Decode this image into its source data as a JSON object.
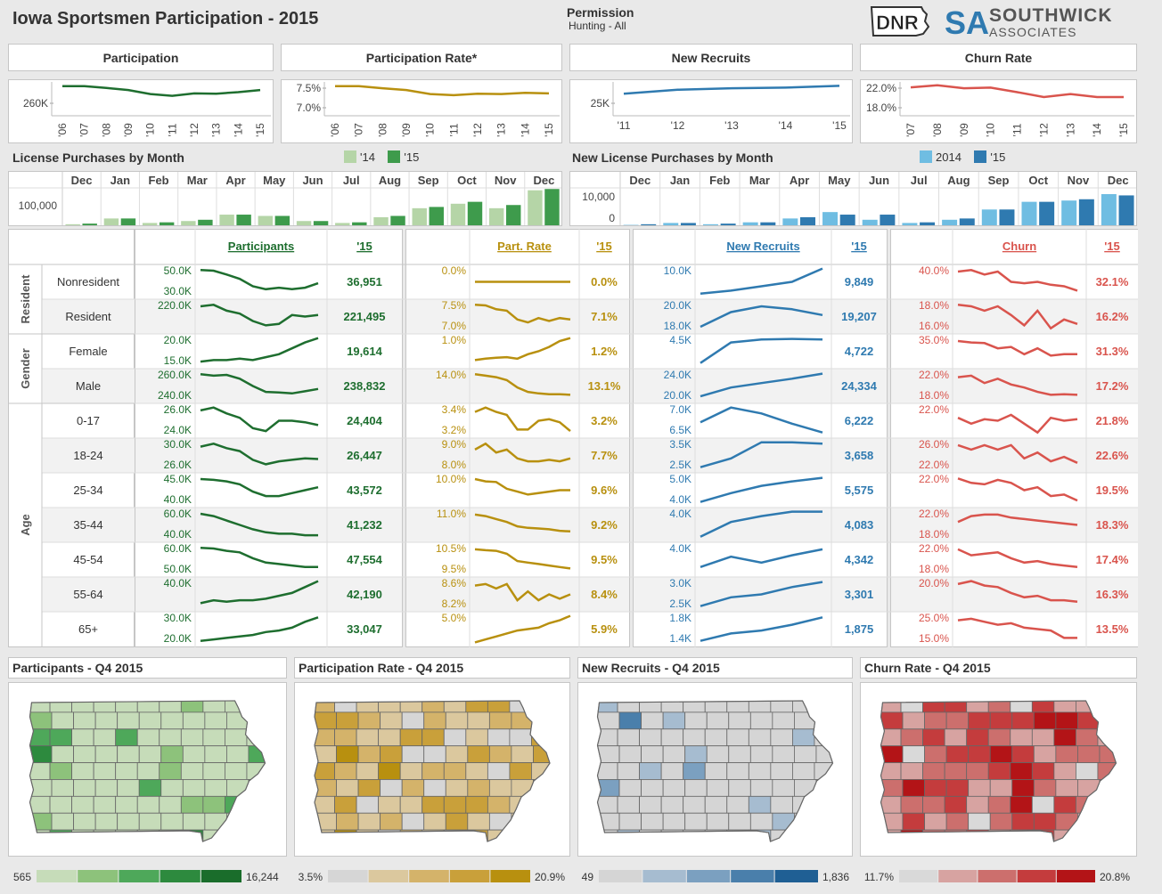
{
  "header": {
    "title": "Iowa Sportsmen Participation - 2015",
    "permission_label": "Permission",
    "permission_value": "Hunting - All",
    "logo_dnr": "DNR",
    "logo_sa_main": "SOUTHWICK",
    "logo_sa_sub": "ASSOCIATES",
    "logo_sa_mark": "SA"
  },
  "kpis": [
    {
      "title": "Participation",
      "color": "#1e6e2f",
      "ticks": [
        "260K"
      ],
      "x": [
        "'06",
        "'07",
        "'08",
        "'09",
        "'10",
        "'11",
        "'12",
        "'13",
        "'14",
        "'15"
      ],
      "values": [
        92,
        92,
        86,
        79,
        66,
        60,
        68,
        67,
        72,
        79
      ]
    },
    {
      "title": "Participation Rate*",
      "color": "#b8900f",
      "ticks": [
        "7.5%",
        "7.0%"
      ],
      "x": [
        "'06",
        "'07",
        "'08",
        "'09",
        "'10",
        "'11",
        "'12",
        "'13",
        "'14",
        "'15"
      ],
      "values": [
        92,
        92,
        85,
        79,
        66,
        62,
        67,
        66,
        70,
        68
      ]
    },
    {
      "title": "New Recruits",
      "color": "#2f7ab0",
      "ticks": [
        "25K"
      ],
      "x": [
        "'11",
        "'12",
        "'13",
        "'14",
        "'15"
      ],
      "values": [
        67,
        80,
        85,
        87,
        93
      ]
    },
    {
      "title": "Churn Rate",
      "color": "#d9544d",
      "ticks": [
        "22.0%",
        "18.0%"
      ],
      "x": [
        "'07",
        "'08",
        "'09",
        "'10",
        "'11",
        "'12",
        "'13",
        "'14",
        "'15"
      ],
      "values": [
        88,
        95,
        85,
        87,
        72,
        56,
        66,
        56,
        56
      ]
    }
  ],
  "license_by_month": {
    "title": "License Purchases by Month",
    "legend": [
      "'14",
      "'15"
    ],
    "colors": [
      "#b5d5a7",
      "#3e9b4c"
    ],
    "months": [
      "Dec",
      "Jan",
      "Feb",
      "Mar",
      "Apr",
      "May",
      "Jun",
      "Jul",
      "Aug",
      "Sep",
      "Oct",
      "Nov",
      "Dec"
    ],
    "ytick": "100,000",
    "v14": [
      3,
      12,
      5,
      8,
      18,
      16,
      8,
      5,
      14,
      28,
      35,
      28,
      56
    ],
    "v15": [
      4,
      12,
      6,
      10,
      18,
      16,
      8,
      6,
      16,
      30,
      38,
      33,
      58
    ]
  },
  "new_license_by_month": {
    "title": "New License Purchases by Month",
    "legend": [
      "2014",
      "'15"
    ],
    "colors": [
      "#6fbde2",
      "#2f7ab0"
    ],
    "months": [
      "Dec",
      "Jan",
      "Feb",
      "Mar",
      "Apr",
      "May",
      "Jun",
      "Jul",
      "Aug",
      "Sep",
      "Oct",
      "Nov",
      "Dec"
    ],
    "yticks": [
      "10,000",
      "0"
    ],
    "v14": [
      2,
      5,
      3,
      6,
      12,
      22,
      10,
      5,
      10,
      26,
      38,
      40,
      50
    ],
    "v15": [
      3,
      5,
      4,
      6,
      14,
      18,
      18,
      6,
      12,
      26,
      38,
      42,
      48
    ]
  },
  "table": {
    "groups": [
      {
        "label": "Resident",
        "rows": 2
      },
      {
        "label": "Gender",
        "rows": 2
      },
      {
        "label": "Age",
        "rows": 7
      }
    ],
    "rows": [
      "Nonresident",
      "Resident",
      "Female",
      "Male",
      "0-17",
      "18-24",
      "25-34",
      "35-44",
      "45-54",
      "55-64",
      "65+"
    ],
    "sections": [
      {
        "header": "Participants",
        "year": "'15",
        "color": "#1e6e2f",
        "ticks": [
          [
            "50.0K",
            "30.0K"
          ],
          [
            "220.0K",
            ""
          ],
          [
            "20.0K",
            "15.0K"
          ],
          [
            "260.0K",
            "240.0K"
          ],
          [
            "26.0K",
            "24.0K"
          ],
          [
            "30.0K",
            "26.0K"
          ],
          [
            "45.0K",
            "40.0K"
          ],
          [
            "60.0K",
            "40.0K"
          ],
          [
            "60.0K",
            "50.0K"
          ],
          [
            "40.0K",
            ""
          ],
          [
            "30.0K",
            "20.0K"
          ]
        ],
        "values": [
          "36,951",
          "221,495",
          "19,614",
          "238,832",
          "24,404",
          "26,447",
          "43,572",
          "41,232",
          "47,554",
          "42,190",
          "33,047"
        ],
        "lines": [
          [
            90,
            88,
            75,
            60,
            35,
            25,
            30,
            25,
            30,
            45
          ],
          [
            85,
            90,
            70,
            60,
            35,
            20,
            25,
            55,
            50,
            55
          ],
          [
            15,
            20,
            20,
            25,
            20,
            30,
            40,
            60,
            80,
            95
          ],
          [
            90,
            85,
            88,
            75,
            50,
            30,
            28,
            25,
            32,
            40
          ],
          [
            85,
            95,
            75,
            60,
            25,
            15,
            50,
            50,
            45,
            35
          ],
          [
            80,
            90,
            75,
            65,
            35,
            20,
            30,
            35,
            40,
            38
          ],
          [
            88,
            85,
            80,
            70,
            45,
            30,
            30,
            40,
            50,
            60
          ],
          [
            88,
            80,
            65,
            50,
            35,
            25,
            20,
            20,
            15,
            15
          ],
          [
            90,
            88,
            80,
            75,
            55,
            40,
            35,
            30,
            25,
            25
          ],
          [
            20,
            30,
            25,
            30,
            30,
            35,
            45,
            55,
            75,
            95
          ],
          [
            10,
            15,
            20,
            25,
            30,
            40,
            45,
            55,
            75,
            90
          ]
        ]
      },
      {
        "header": "Part. Rate",
        "year": "'15",
        "color": "#b8900f",
        "ticks": [
          [
            "0.0%",
            ""
          ],
          [
            "7.5%",
            "7.0%"
          ],
          [
            "1.0%",
            ""
          ],
          [
            "14.0%",
            ""
          ],
          [
            "3.4%",
            "3.2%"
          ],
          [
            "9.0%",
            "8.0%"
          ],
          [
            "10.0%",
            ""
          ],
          [
            "11.0%",
            ""
          ],
          [
            "10.5%",
            "9.5%"
          ],
          [
            "8.6%",
            "8.2%"
          ],
          [
            "5.0%",
            ""
          ]
        ],
        "values": [
          "0.0%",
          "7.1%",
          "1.2%",
          "13.1%",
          "3.2%",
          "7.7%",
          "9.6%",
          "9.2%",
          "9.5%",
          "8.4%",
          "5.9%"
        ],
        "lines": [
          [
            50,
            50,
            50,
            50,
            50,
            50,
            50,
            50,
            50,
            50
          ],
          [
            90,
            88,
            75,
            70,
            40,
            30,
            45,
            35,
            45,
            40
          ],
          [
            20,
            25,
            28,
            30,
            25,
            40,
            50,
            65,
            85,
            95
          ],
          [
            90,
            85,
            80,
            70,
            45,
            30,
            25,
            22,
            22,
            20
          ],
          [
            80,
            95,
            80,
            70,
            20,
            20,
            50,
            55,
            45,
            15
          ],
          [
            70,
            90,
            60,
            70,
            40,
            30,
            30,
            35,
            30,
            40
          ],
          [
            88,
            80,
            78,
            55,
            45,
            35,
            40,
            45,
            50,
            50
          ],
          [
            85,
            80,
            70,
            60,
            45,
            40,
            38,
            35,
            30,
            28
          ],
          [
            85,
            82,
            80,
            70,
            45,
            40,
            35,
            30,
            25,
            20
          ],
          [
            80,
            85,
            70,
            85,
            30,
            60,
            30,
            50,
            35,
            50
          ],
          [
            5,
            15,
            25,
            35,
            45,
            50,
            55,
            70,
            80,
            95
          ]
        ]
      },
      {
        "header": "New Recruits",
        "year": "'15",
        "color": "#2f7ab0",
        "ticks": [
          [
            "10.0K",
            ""
          ],
          [
            "20.0K",
            "18.0K"
          ],
          [
            "4.5K",
            ""
          ],
          [
            "24.0K",
            "20.0K"
          ],
          [
            "7.0K",
            "6.5K"
          ],
          [
            "3.5K",
            "2.5K"
          ],
          [
            "5.0K",
            "4.0K"
          ],
          [
            "4.0K",
            ""
          ],
          [
            "4.0K",
            ""
          ],
          [
            "3.0K",
            "2.5K"
          ],
          [
            "1.8K",
            "1.4K"
          ]
        ],
        "values": [
          "9,849",
          "19,207",
          "4,722",
          "24,334",
          "6,222",
          "3,658",
          "5,575",
          "4,083",
          "4,342",
          "3,301",
          "1,875"
        ],
        "lines": [
          [
            10,
            20,
            35,
            50,
            95
          ],
          [
            15,
            65,
            85,
            75,
            55
          ],
          [
            10,
            80,
            90,
            92,
            90
          ],
          [
            15,
            45,
            60,
            75,
            92
          ],
          [
            45,
            95,
            75,
            40,
            10
          ],
          [
            10,
            40,
            95,
            95,
            90
          ],
          [
            10,
            40,
            65,
            80,
            92
          ],
          [
            10,
            60,
            80,
            95,
            95
          ],
          [
            25,
            60,
            40,
            65,
            85
          ],
          [
            10,
            40,
            50,
            75,
            92
          ],
          [
            10,
            35,
            45,
            65,
            90
          ]
        ]
      },
      {
        "header": "Churn",
        "year": "'15",
        "color": "#d9544d",
        "ticks": [
          [
            "40.0%",
            ""
          ],
          [
            "18.0%",
            "16.0%"
          ],
          [
            "35.0%",
            ""
          ],
          [
            "22.0%",
            "18.0%"
          ],
          [
            "22.0%",
            ""
          ],
          [
            "26.0%",
            "22.0%"
          ],
          [
            "22.0%",
            ""
          ],
          [
            "22.0%",
            "18.0%"
          ],
          [
            "22.0%",
            "18.0%"
          ],
          [
            "20.0%",
            ""
          ],
          [
            "25.0%",
            "15.0%"
          ]
        ],
        "values": [
          "32.1%",
          "16.2%",
          "31.3%",
          "17.2%",
          "21.8%",
          "22.6%",
          "19.5%",
          "18.3%",
          "17.4%",
          "16.3%",
          "13.5%"
        ],
        "lines": [
          [
            85,
            90,
            75,
            85,
            50,
            45,
            50,
            40,
            35,
            20
          ],
          [
            90,
            85,
            70,
            85,
            55,
            20,
            70,
            10,
            40,
            25
          ],
          [
            85,
            80,
            78,
            60,
            65,
            40,
            60,
            35,
            40,
            40
          ],
          [
            80,
            85,
            60,
            75,
            55,
            45,
            30,
            20,
            22,
            20
          ],
          [
            60,
            40,
            55,
            50,
            70,
            40,
            10,
            60,
            50,
            55
          ],
          [
            85,
            70,
            85,
            70,
            85,
            40,
            60,
            30,
            45,
            25
          ],
          [
            90,
            75,
            70,
            85,
            75,
            50,
            60,
            30,
            35,
            15
          ],
          [
            60,
            80,
            85,
            85,
            75,
            70,
            65,
            60,
            55,
            50
          ],
          [
            85,
            65,
            70,
            75,
            55,
            40,
            45,
            35,
            30,
            25
          ],
          [
            85,
            95,
            80,
            75,
            55,
            40,
            45,
            30,
            30,
            25
          ],
          [
            80,
            85,
            75,
            65,
            70,
            55,
            50,
            45,
            20,
            20
          ]
        ]
      }
    ]
  },
  "maps": [
    {
      "title": "Participants - Q4 2015",
      "min": "565",
      "max": "16,244",
      "scale": [
        "#c6dcb9",
        "#8dc27b",
        "#4ea85a",
        "#2d8a3e",
        "#1a6d2b"
      ],
      "base": "#d5e6cb"
    },
    {
      "title": "Participation Rate - Q4 2015",
      "min": "3.5%",
      "max": "20.9%",
      "scale": [
        "#d6d6d6",
        "#dbc89e",
        "#d4b36a",
        "#c9a03a",
        "#b8900f"
      ],
      "base": "#d8c692"
    },
    {
      "title": "New Recruits - Q4 2015",
      "min": "49",
      "max": "1,836",
      "scale": [
        "#d5d5d5",
        "#a6bcd0",
        "#7ba0c0",
        "#4a7fab",
        "#1f5f94"
      ],
      "base": "#d9d9d9"
    },
    {
      "title": "Churn Rate - Q4 2015",
      "min": "11.7%",
      "max": "20.8%",
      "scale": [
        "#d9d9d9",
        "#d7a3a1",
        "#cc6f6d",
        "#c43c3d",
        "#b31417"
      ],
      "base": "#d08886"
    }
  ]
}
